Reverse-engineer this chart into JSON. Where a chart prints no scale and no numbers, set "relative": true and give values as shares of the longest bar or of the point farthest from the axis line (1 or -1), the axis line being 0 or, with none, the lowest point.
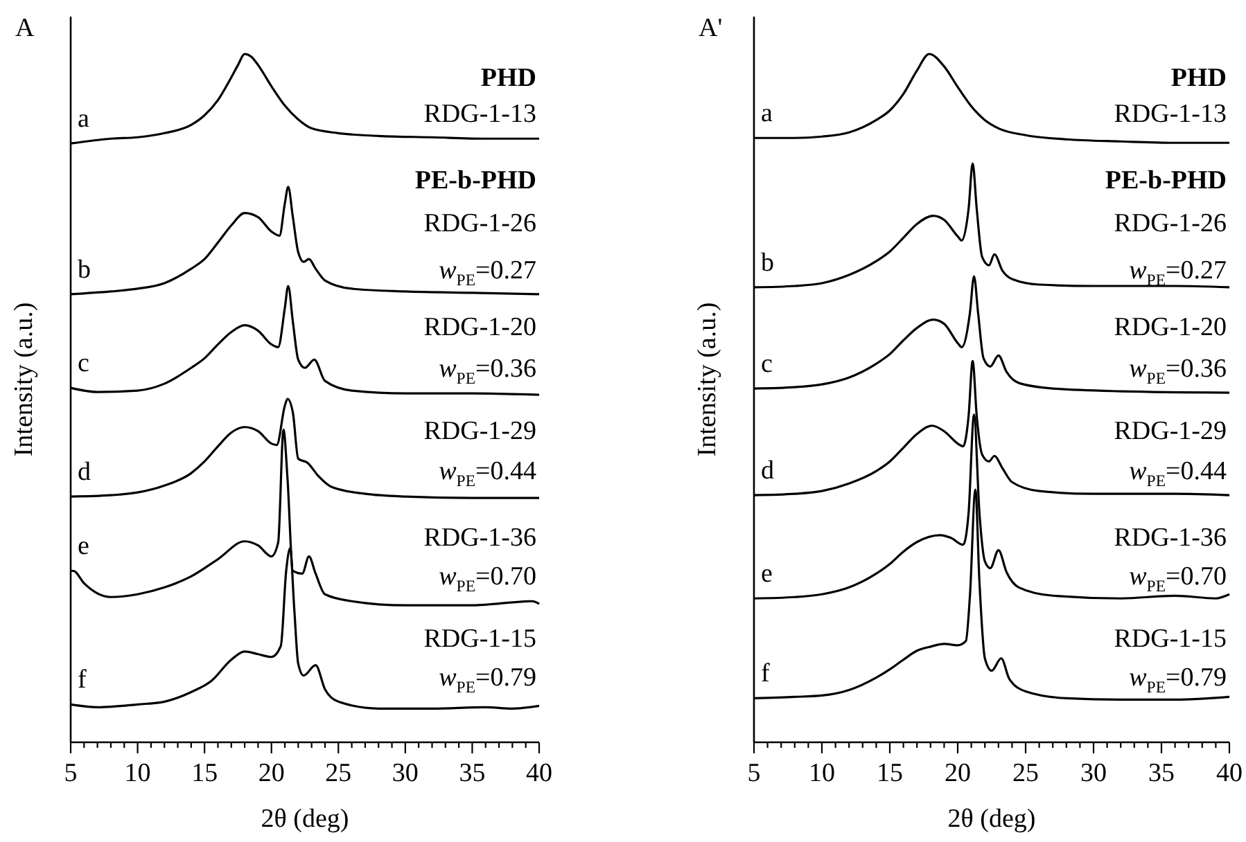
{
  "chart_data": [
    {
      "type": "line",
      "relative": true,
      "title": "A",
      "xlabel": "2θ (deg)",
      "ylabel": "Intensity (a.u.)",
      "xlim": [
        5,
        40
      ],
      "xticks": [
        5,
        {
          "value": 6,
          "label": null
        },
        {
          "value": 7,
          "label": null
        },
        {
          "value": 8,
          "label": null
        },
        {
          "value": 9,
          "label": null
        },
        10,
        {
          "value": 11,
          "label": null
        },
        {
          "value": 12,
          "label": null
        },
        {
          "value": 13,
          "label": null
        },
        {
          "value": 14,
          "label": null
        },
        15,
        {
          "value": 16,
          "label": null
        },
        {
          "value": 17,
          "label": null
        },
        {
          "value": 18,
          "label": null
        },
        {
          "value": 19,
          "label": null
        },
        20,
        {
          "value": 21,
          "label": null
        },
        {
          "value": 22,
          "label": null
        },
        {
          "value": 23,
          "label": null
        },
        {
          "value": 24,
          "label": null
        },
        25,
        {
          "value": 26,
          "label": null
        },
        {
          "value": 27,
          "label": null
        },
        {
          "value": 28,
          "label": null
        },
        {
          "value": 29,
          "label": null
        },
        30,
        {
          "value": 31,
          "label": null
        },
        {
          "value": 32,
          "label": null
        },
        {
          "value": 33,
          "label": null
        },
        {
          "value": 34,
          "label": null
        },
        35,
        {
          "value": 36,
          "label": null
        },
        {
          "value": 37,
          "label": null
        },
        {
          "value": 38,
          "label": null
        },
        {
          "value": 39,
          "label": null
        },
        40
      ],
      "tick_labels": "x",
      "annotations": [
        "PHD",
        "RDG-1-13",
        "PE-b-PHD",
        "RDG-1-26",
        "w$_{PE}$=0.27",
        "RDG-1-20",
        "w$_{PE}$=0.36",
        "RDG-1-29",
        "w$_{PE}$=0.44",
        "RDG-1-36",
        "w$_{PE}$=0.70",
        "RDG-1-15",
        "w$_{PE}$=0.79"
      ],
      "series": [
        {
          "name": "a",
          "color": "#000000",
          "x": [
            5,
            8,
            10,
            12,
            14,
            15,
            16,
            17,
            17.5,
            18,
            18.5,
            19,
            20,
            21,
            22,
            23,
            25,
            28,
            32,
            36,
            40
          ],
          "values": [
            0.87,
            0.877,
            0.879,
            0.885,
            0.897,
            0.911,
            0.933,
            0.966,
            0.984,
            1.0,
            0.996,
            0.984,
            0.953,
            0.925,
            0.905,
            0.892,
            0.885,
            0.881,
            0.879,
            0.877,
            0.877
          ]
        },
        {
          "name": "b",
          "color": "#000000",
          "x": [
            5,
            8,
            10,
            12,
            14,
            15,
            16,
            17,
            18,
            19,
            20,
            20.6,
            21,
            21.25,
            21.6,
            22,
            22.4,
            22.8,
            23.3,
            24,
            26,
            30,
            35,
            40
          ],
          "values": [
            0.651,
            0.655,
            0.659,
            0.667,
            0.688,
            0.702,
            0.726,
            0.751,
            0.769,
            0.763,
            0.742,
            0.736,
            0.783,
            0.807,
            0.763,
            0.712,
            0.698,
            0.702,
            0.688,
            0.671,
            0.659,
            0.655,
            0.653,
            0.651
          ]
        },
        {
          "name": "c",
          "color": "#000000",
          "x": [
            5,
            7,
            10,
            12,
            14,
            15,
            16,
            17,
            18,
            19,
            20,
            20.5,
            21,
            21.25,
            21.6,
            22,
            22.5,
            23.2,
            24,
            26,
            30,
            35,
            40
          ],
          "values": [
            0.515,
            0.509,
            0.511,
            0.521,
            0.544,
            0.558,
            0.578,
            0.596,
            0.606,
            0.598,
            0.578,
            0.574,
            0.631,
            0.663,
            0.611,
            0.556,
            0.544,
            0.556,
            0.525,
            0.511,
            0.507,
            0.507,
            0.505
          ]
        },
        {
          "name": "d",
          "color": "#000000",
          "x": [
            5,
            8,
            10,
            12,
            14,
            15,
            16,
            17,
            18,
            19,
            20,
            20.4,
            21,
            21.2,
            21.6,
            22,
            22.7,
            23.5,
            24.5,
            27,
            30,
            35,
            40
          ],
          "values": [
            0.357,
            0.359,
            0.363,
            0.373,
            0.391,
            0.408,
            0.43,
            0.45,
            0.458,
            0.452,
            0.434,
            0.432,
            0.489,
            0.499,
            0.479,
            0.412,
            0.406,
            0.387,
            0.371,
            0.361,
            0.357,
            0.355,
            0.355
          ]
        },
        {
          "name": "e",
          "color": "#000000",
          "x": [
            5,
            5.2,
            6,
            8,
            10,
            12,
            14,
            16,
            18,
            19,
            20,
            20.5,
            20.9,
            21.2,
            21.6,
            22.3,
            22.8,
            23.3,
            24,
            26,
            30,
            35,
            39.5,
            40
          ],
          "values": [
            0.249,
            0.249,
            0.231,
            0.211,
            0.215,
            0.225,
            0.241,
            0.266,
            0.292,
            0.286,
            0.27,
            0.29,
            0.454,
            0.383,
            0.249,
            0.245,
            0.27,
            0.245,
            0.215,
            0.205,
            0.199,
            0.199,
            0.205,
            0.201
          ]
        },
        {
          "name": "f",
          "color": "#000000",
          "x": [
            5,
            7,
            10,
            12,
            14,
            15.5,
            17,
            18,
            19,
            20,
            20.7,
            21.1,
            21.4,
            21.7,
            22,
            22.4,
            23.3,
            24,
            25,
            28,
            32,
            36,
            38,
            40
          ],
          "values": [
            0.055,
            0.051,
            0.055,
            0.059,
            0.073,
            0.089,
            0.12,
            0.132,
            0.128,
            0.124,
            0.14,
            0.249,
            0.282,
            0.195,
            0.114,
            0.097,
            0.112,
            0.077,
            0.059,
            0.049,
            0.049,
            0.051,
            0.049,
            0.053
          ]
        }
      ]
    },
    {
      "type": "line",
      "relative": true,
      "title": "A'",
      "xlabel": "2θ (deg)",
      "ylabel": "Intensity (a.u.)",
      "xlim": [
        5,
        40
      ],
      "xticks": [
        5,
        {
          "value": 6,
          "label": null
        },
        {
          "value": 7,
          "label": null
        },
        {
          "value": 8,
          "label": null
        },
        {
          "value": 9,
          "label": null
        },
        10,
        {
          "value": 11,
          "label": null
        },
        {
          "value": 12,
          "label": null
        },
        {
          "value": 13,
          "label": null
        },
        {
          "value": 14,
          "label": null
        },
        15,
        {
          "value": 16,
          "label": null
        },
        {
          "value": 17,
          "label": null
        },
        {
          "value": 18,
          "label": null
        },
        {
          "value": 19,
          "label": null
        },
        20,
        {
          "value": 21,
          "label": null
        },
        {
          "value": 22,
          "label": null
        },
        {
          "value": 23,
          "label": null
        },
        {
          "value": 24,
          "label": null
        },
        25,
        {
          "value": 26,
          "label": null
        },
        {
          "value": 27,
          "label": null
        },
        {
          "value": 28,
          "label": null
        },
        {
          "value": 29,
          "label": null
        },
        30,
        {
          "value": 31,
          "label": null
        },
        {
          "value": 32,
          "label": null
        },
        {
          "value": 33,
          "label": null
        },
        {
          "value": 34,
          "label": null
        },
        35,
        {
          "value": 36,
          "label": null
        },
        {
          "value": 37,
          "label": null
        },
        {
          "value": 38,
          "label": null
        },
        {
          "value": 39,
          "label": null
        },
        40
      ],
      "tick_labels": "x",
      "annotations": [
        "PHD",
        "RDG-1-13",
        "PE-b-PHD",
        "RDG-1-26",
        "w$_{PE}$=0.27",
        "RDG-1-20",
        "w$_{PE}$=0.36",
        "RDG-1-29",
        "w$_{PE}$=0.44",
        "RDG-1-36",
        "w$_{PE}$=0.70",
        "RDG-1-15",
        "w$_{PE}$=0.79"
      ],
      "series": [
        {
          "name": "a",
          "color": "#000000",
          "x": [
            5,
            8,
            10,
            12,
            14,
            15,
            16,
            17,
            17.9,
            19,
            20,
            21,
            22,
            23,
            25,
            28,
            32,
            36,
            40
          ],
          "values": [
            0.878,
            0.878,
            0.88,
            0.886,
            0.904,
            0.918,
            0.942,
            0.976,
            1.0,
            0.982,
            0.952,
            0.924,
            0.904,
            0.892,
            0.882,
            0.876,
            0.873,
            0.871,
            0.871
          ]
        },
        {
          "name": "b",
          "color": "#000000",
          "x": [
            5,
            8,
            10,
            12,
            14,
            15,
            16,
            17,
            18.2,
            19,
            20,
            20.3,
            20.8,
            21.1,
            21.4,
            21.8,
            22.3,
            22.7,
            23.3,
            24,
            26,
            30,
            36,
            40
          ],
          "values": [
            0.661,
            0.663,
            0.667,
            0.679,
            0.699,
            0.713,
            0.733,
            0.753,
            0.765,
            0.759,
            0.735,
            0.729,
            0.775,
            0.841,
            0.775,
            0.705,
            0.693,
            0.709,
            0.685,
            0.673,
            0.665,
            0.663,
            0.663,
            0.661
          ]
        },
        {
          "name": "c",
          "color": "#000000",
          "x": [
            5,
            8,
            10,
            12,
            14,
            15,
            16,
            17,
            18.2,
            19,
            20,
            20.3,
            20.9,
            21.2,
            21.5,
            21.9,
            22.4,
            23,
            23.6,
            24.5,
            27,
            32,
            40
          ],
          "values": [
            0.514,
            0.516,
            0.52,
            0.53,
            0.55,
            0.564,
            0.584,
            0.602,
            0.614,
            0.608,
            0.58,
            0.574,
            0.624,
            0.677,
            0.624,
            0.558,
            0.546,
            0.562,
            0.538,
            0.522,
            0.514,
            0.51,
            0.508
          ]
        },
        {
          "name": "d",
          "color": "#000000",
          "x": [
            5,
            8,
            10,
            12,
            14,
            15,
            16,
            17,
            18.1,
            19,
            20,
            20.4,
            20.8,
            21.1,
            21.4,
            21.8,
            22.3,
            22.7,
            23.3,
            24,
            26,
            30,
            36,
            40
          ],
          "values": [
            0.359,
            0.361,
            0.365,
            0.376,
            0.394,
            0.408,
            0.428,
            0.448,
            0.46,
            0.452,
            0.434,
            0.43,
            0.474,
            0.554,
            0.474,
            0.418,
            0.408,
            0.416,
            0.398,
            0.378,
            0.365,
            0.361,
            0.361,
            0.359
          ]
        },
        {
          "name": "e",
          "color": "#000000",
          "x": [
            5,
            8,
            10,
            12,
            14,
            15,
            16,
            17,
            18.7,
            19.5,
            20.4,
            20.8,
            21.2,
            21.6,
            22,
            22.4,
            23,
            23.6,
            24.5,
            27,
            32,
            36,
            39,
            40
          ],
          "values": [
            0.209,
            0.211,
            0.215,
            0.225,
            0.245,
            0.259,
            0.277,
            0.291,
            0.301,
            0.297,
            0.287,
            0.333,
            0.476,
            0.333,
            0.263,
            0.253,
            0.279,
            0.247,
            0.225,
            0.213,
            0.209,
            0.213,
            0.209,
            0.215
          ]
        },
        {
          "name": "f",
          "color": "#000000",
          "x": [
            5,
            8,
            10,
            12,
            14,
            15,
            16,
            17,
            18,
            19,
            20,
            20.6,
            20.9,
            21.3,
            21.6,
            22,
            22.5,
            23.2,
            23.8,
            25,
            28,
            32,
            36,
            40
          ],
          "values": [
            0.064,
            0.066,
            0.068,
            0.076,
            0.094,
            0.106,
            0.12,
            0.133,
            0.139,
            0.143,
            0.141,
            0.147,
            0.213,
            0.367,
            0.233,
            0.122,
            0.104,
            0.122,
            0.092,
            0.074,
            0.064,
            0.062,
            0.062,
            0.066
          ]
        }
      ]
    }
  ]
}
